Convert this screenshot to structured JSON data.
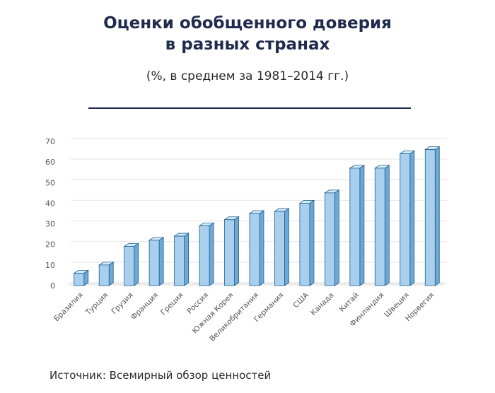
{
  "title_line1": "Оценки обобщенного доверия",
  "title_line2": "в разных странах",
  "subtitle": "(%, в среднем за 1981–2014 гг.)",
  "source": "Источник: Всемирный обзор ценностей",
  "colors": {
    "title": "#1f2a4d",
    "bar_front": "#a9cfee",
    "bar_side": "#6fa8d6",
    "bar_top": "#d6ebfa",
    "bar_stroke": "#1b5f8c",
    "grid": "#e3e3e3",
    "floor": "#ececec"
  },
  "chart_data": {
    "type": "bar",
    "title": "Оценки обобщенного доверия в разных странах",
    "subtitle": "(%, в среднем за 1981–2014 гг.)",
    "xlabel": "",
    "ylabel": "",
    "ylim": [
      0,
      70
    ],
    "yticks": [
      0,
      10,
      20,
      30,
      40,
      50,
      60,
      70
    ],
    "grid": true,
    "categories": [
      "Бразилия",
      "Турция",
      "Грузия",
      "Франция",
      "Греция",
      "Россия",
      "Южная Корея",
      "Великобритания",
      "Германия",
      "США",
      "Канада",
      "Китай",
      "Финляндия",
      "Швеция",
      "Норвегия"
    ],
    "values": [
      6,
      10,
      19,
      22,
      24,
      29,
      32,
      35,
      36,
      40,
      45,
      57,
      57,
      64,
      66
    ]
  }
}
